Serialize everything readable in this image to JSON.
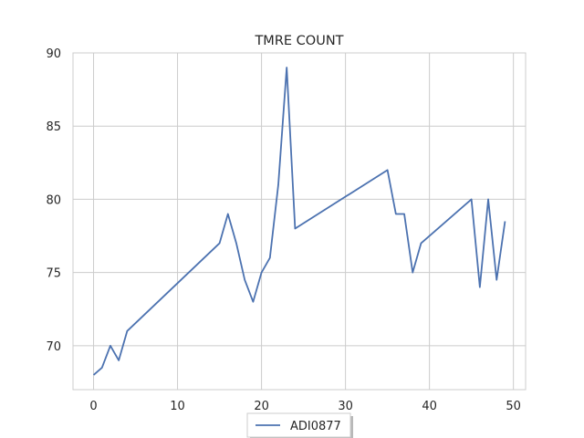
{
  "chart_data": {
    "type": "line",
    "title": "TMRE COUNT",
    "xlabel": "",
    "ylabel": "",
    "xlim": [
      -2.45,
      51.45
    ],
    "ylim": [
      67,
      90
    ],
    "xticks": [
      0,
      10,
      20,
      30,
      40,
      50
    ],
    "yticks": [
      70,
      75,
      80,
      85,
      90
    ],
    "grid": true,
    "legend_position": "bottom-center",
    "series": [
      {
        "name": "ADI0877",
        "color": "#4c72b0",
        "x": [
          0,
          1,
          2,
          3,
          4,
          15,
          16,
          17,
          18,
          19,
          20,
          21,
          22,
          23,
          24,
          35,
          36,
          37,
          38,
          39,
          45,
          46,
          47,
          48,
          49
        ],
        "y": [
          68,
          68.5,
          70,
          69,
          71,
          77,
          79,
          77,
          74.5,
          73,
          75,
          76,
          81,
          89,
          78,
          82,
          79,
          79,
          75,
          77,
          80,
          74,
          80,
          74.5,
          78.5
        ]
      }
    ]
  }
}
